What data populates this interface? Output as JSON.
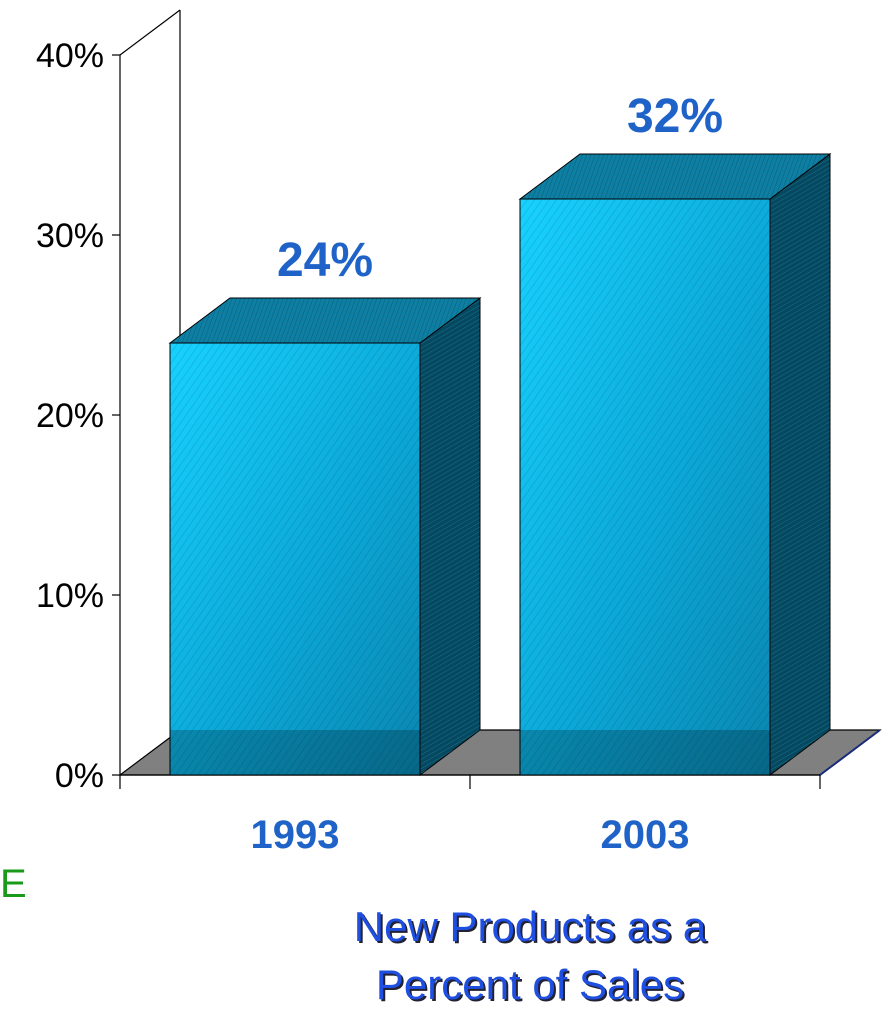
{
  "chart_data": {
    "type": "bar",
    "categories": [
      "1993",
      "2003"
    ],
    "values": [
      24,
      32
    ],
    "data_labels": [
      "24%",
      "32%"
    ],
    "yticks": [
      "0%",
      "10%",
      "20%",
      "30%",
      "40%"
    ],
    "ylim": [
      0,
      40
    ],
    "title": "",
    "xlabel": "",
    "ylabel": "",
    "caption_lines": [
      "New Products as a",
      "Percent of Sales"
    ],
    "grid": false,
    "legend": "none",
    "colors": {
      "bar_front": "#0ab4e6",
      "bar_top": "#0e7fa3",
      "bar_side": "#06485f",
      "floor": "#808080",
      "label": "#1f63c8",
      "caption": "#1f4fe0",
      "edge_mark": "#1a9a1a"
    }
  },
  "edge_mark_text": "E"
}
